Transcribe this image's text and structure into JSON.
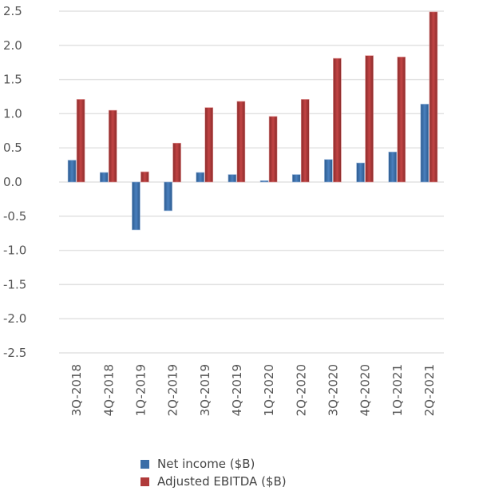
{
  "chart_data": {
    "type": "bar",
    "categories": [
      "3Q-2018",
      "4Q-2018",
      "1Q-2019",
      "2Q-2019",
      "3Q-2019",
      "4Q-2019",
      "1Q-2020",
      "2Q-2020",
      "3Q-2020",
      "4Q-2020",
      "1Q-2021",
      "2Q-2021"
    ],
    "series": [
      {
        "name": "Net income ($B)",
        "color": "#3a6ea8",
        "values": [
          0.32,
          0.14,
          -0.7,
          -0.42,
          0.14,
          0.11,
          0.02,
          0.11,
          0.33,
          0.28,
          0.44,
          1.14
        ]
      },
      {
        "name": "Adjusted EBITDA ($B)",
        "color": "#b03a3a",
        "values": [
          1.21,
          1.05,
          0.15,
          0.57,
          1.09,
          1.18,
          0.96,
          1.21,
          1.81,
          1.85,
          1.83,
          2.49
        ]
      }
    ],
    "yticks": [
      "2.5",
      "2.0",
      "1.5",
      "1.0",
      "0.5",
      "0.0",
      "-0.5",
      "-1.0",
      "-1.5",
      "-2.0",
      "-2.5"
    ],
    "ylim": [
      -2.5,
      2.5
    ],
    "grid": true,
    "legend_position": "bottom"
  }
}
